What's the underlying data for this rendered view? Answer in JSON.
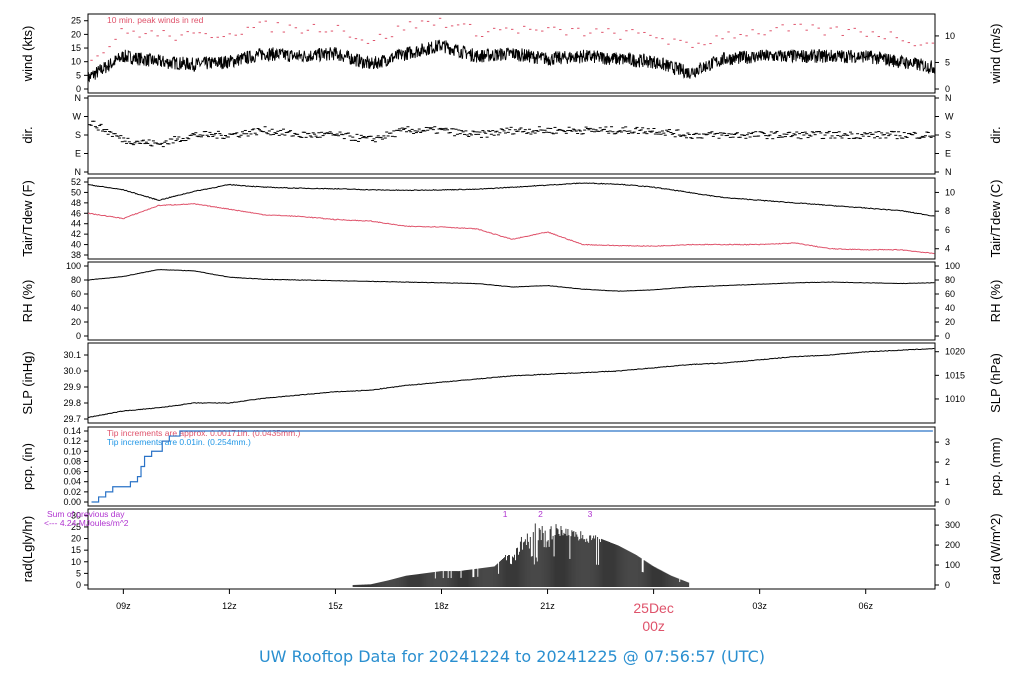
{
  "footer_title": "UW Rooftop Data for 20241224  to  20241225 @ 07:56:57  (UTC)",
  "date_label": {
    "day": "25Dec",
    "hour": "00z",
    "color": "#df536b"
  },
  "x_ticks": [
    "09z",
    "12z",
    "15z",
    "18z",
    "21z",
    "03z",
    "06z"
  ],
  "x_tick_hours": [
    9,
    12,
    15,
    18,
    21,
    27,
    30
  ],
  "x_range_hours": [
    8,
    31.96
  ],
  "panels": [
    {
      "id": "wind",
      "ylabel_left": "wind (kts)",
      "ylabel_right": "wind (m/s)",
      "left_ticks": [
        "0",
        "5",
        "10",
        "15",
        "20",
        "25"
      ],
      "right_ticks": [
        "0",
        "5",
        "10"
      ],
      "annotations": [
        {
          "text": "10 min. peak winds in red",
          "color": "#df536b"
        }
      ]
    },
    {
      "id": "dir",
      "ylabel_left": "dir.",
      "ylabel_right": "dir.",
      "left_ticks": [
        "N",
        "E",
        "S",
        "W",
        "N"
      ],
      "right_ticks": [
        "N",
        "E",
        "S",
        "W",
        "N"
      ],
      "annotations": []
    },
    {
      "id": "temp",
      "ylabel_left": "Tair/Tdew (F)",
      "ylabel_right": "Tair/Tdew (C)",
      "left_ticks": [
        "38",
        "40",
        "42",
        "44",
        "46",
        "48",
        "50",
        "52"
      ],
      "right_ticks": [
        "4",
        "6",
        "8",
        "10"
      ],
      "annotations": []
    },
    {
      "id": "rh",
      "ylabel_left": "RH (%)",
      "ylabel_right": "RH (%)",
      "left_ticks": [
        "0",
        "20",
        "40",
        "60",
        "80",
        "100"
      ],
      "right_ticks": [
        "0",
        "20",
        "40",
        "60",
        "80",
        "100"
      ],
      "annotations": []
    },
    {
      "id": "slp",
      "ylabel_left": "SLP (inHg)",
      "ylabel_right": "SLP (hPa)",
      "left_ticks": [
        "29.7",
        "29.8",
        "29.9",
        "30.0",
        "30.1"
      ],
      "right_ticks": [
        "1010",
        "1015",
        "1020"
      ],
      "annotations": []
    },
    {
      "id": "pcp",
      "ylabel_left": "pcp. (in)",
      "ylabel_right": "pcp. (mm)",
      "left_ticks": [
        "0.00",
        "0.02",
        "0.04",
        "0.06",
        "0.08",
        "0.10",
        "0.12",
        "0.14"
      ],
      "right_ticks": [
        "0",
        "1",
        "2",
        "3"
      ],
      "annotations": [
        {
          "text": "Tip increments are approx. 0.00171in. (0.0435mm.)",
          "color": "#df536b"
        },
        {
          "text": "Tip increments are 0.01in. (0.254mm.)",
          "color": "#2297e6"
        }
      ]
    },
    {
      "id": "rad",
      "ylabel_left": "rad(Lgly/hr)",
      "ylabel_right": "rad (W/m^2)",
      "left_ticks": [
        "0",
        "5",
        "10",
        "15",
        "20",
        "25",
        "30"
      ],
      "right_ticks": [
        "0",
        "100",
        "200",
        "300"
      ],
      "annotations": [
        {
          "text": "Sum of previous day",
          "color": "#b033d0"
        },
        {
          "text": "<--- 4.24 MJoules/m^2",
          "color": "#b033d0"
        }
      ],
      "markers": [
        "1",
        "2",
        "3"
      ]
    }
  ],
  "colors": {
    "line": "#000000",
    "peak": "#df536b",
    "dew": "#df536b",
    "pcp": "#2a73c7",
    "annot_purple": "#b033d0",
    "footer": "#2a8fd0"
  },
  "chart_data": [
    {
      "type": "line",
      "panel": "wind",
      "title": "",
      "ylabel": "wind (kts)",
      "ylim": [
        0,
        26
      ],
      "x_hours": [
        8,
        9,
        10,
        11,
        12,
        13,
        14,
        15,
        16,
        17,
        18,
        19,
        20,
        21,
        22,
        23,
        24,
        25,
        26,
        27,
        28,
        29,
        30,
        31,
        31.9
      ],
      "series": [
        {
          "values": [
            4,
            12,
            10,
            9,
            10,
            13,
            12,
            13,
            9,
            13,
            16,
            12,
            13,
            11,
            12,
            11,
            10,
            6,
            11,
            12,
            12,
            12,
            12,
            10,
            8
          ]
        },
        {
          "name": "10 min. peak winds in red",
          "values": [
            9,
            21,
            20,
            19,
            21,
            23,
            22,
            23,
            17,
            23,
            25,
            21,
            22,
            21,
            21,
            20,
            20,
            15,
            20,
            21,
            22,
            21,
            21,
            19,
            16
          ]
        }
      ]
    },
    {
      "type": "scatter",
      "panel": "dir",
      "title": "",
      "ylabel": "dir.",
      "yticks": [
        "N",
        "E",
        "S",
        "W",
        "N"
      ],
      "x_hours": [
        8,
        9,
        10,
        11,
        12,
        13,
        14,
        15,
        16,
        17,
        18,
        19,
        20,
        21,
        22,
        23,
        24,
        25,
        26,
        27,
        28,
        29,
        30,
        31,
        31.9
      ],
      "series": [
        {
          "values": [
            "WSW",
            "SSE",
            "SE",
            "S",
            "S",
            "SSW",
            "S",
            "S",
            "SSE",
            "SSW",
            "SSW",
            "S",
            "SSW",
            "SSW",
            "SSW",
            "SSW",
            "SSW",
            "S",
            "S",
            "S",
            "S",
            "S",
            "S",
            "S",
            "S"
          ]
        }
      ]
    },
    {
      "type": "line",
      "panel": "temp",
      "title": "",
      "ylabel": "Tair/Tdew (F)",
      "ylim": [
        38,
        52
      ],
      "x_hours": [
        8,
        9,
        10,
        11,
        12,
        13,
        14,
        15,
        16,
        17,
        18,
        19,
        20,
        21,
        22,
        23,
        24,
        25,
        26,
        27,
        28,
        29,
        30,
        31,
        31.9
      ],
      "series": [
        {
          "values": [
            51.5,
            50.5,
            48.5,
            50.2,
            51.5,
            51,
            50.8,
            50.7,
            50.5,
            50.4,
            50.5,
            50.6,
            51,
            51.4,
            51.8,
            51.6,
            51,
            50,
            49,
            48.5,
            48,
            47.5,
            47,
            46.5,
            45.5
          ]
        },
        {
          "values": [
            46,
            45,
            47.5,
            47.8,
            46.8,
            45.7,
            45.4,
            44.8,
            44.5,
            43.5,
            43.4,
            43,
            41,
            42.4,
            40,
            39.8,
            39.7,
            40,
            40,
            40,
            40.3,
            39.2,
            39,
            39,
            38.3
          ]
        }
      ]
    },
    {
      "type": "line",
      "panel": "rh",
      "title": "",
      "ylabel": "RH (%)",
      "ylim": [
        0,
        100
      ],
      "x_hours": [
        8,
        9,
        10,
        11,
        12,
        13,
        14,
        15,
        16,
        17,
        18,
        19,
        20,
        21,
        22,
        23,
        24,
        25,
        26,
        27,
        28,
        29,
        30,
        31,
        31.9
      ],
      "series": [
        {
          "values": [
            80,
            85,
            95,
            93,
            84,
            81,
            80,
            79,
            78,
            77,
            76,
            75,
            70,
            72,
            67,
            64,
            66,
            70,
            72,
            74,
            76,
            77,
            76,
            75,
            76
          ]
        }
      ]
    },
    {
      "type": "line",
      "panel": "slp",
      "title": "",
      "ylabel": "SLP (inHg)",
      "ylim": [
        29.7,
        30.15
      ],
      "x_hours": [
        8,
        9,
        10,
        11,
        12,
        13,
        14,
        15,
        16,
        17,
        18,
        19,
        20,
        21,
        22,
        23,
        24,
        25,
        26,
        27,
        28,
        29,
        30,
        31,
        31.9
      ],
      "series": [
        {
          "values": [
            29.71,
            29.75,
            29.77,
            29.8,
            29.8,
            29.83,
            29.85,
            29.87,
            29.88,
            29.91,
            29.93,
            29.95,
            29.97,
            29.98,
            29.99,
            30.0,
            30.02,
            30.04,
            30.05,
            30.07,
            30.09,
            30.1,
            30.12,
            30.13,
            30.14
          ]
        }
      ]
    },
    {
      "type": "line",
      "panel": "pcp",
      "title": "",
      "ylabel": "pcp. (in)",
      "ylim": [
        0,
        0.14
      ],
      "x_hours": [
        8.1,
        8.3,
        8.5,
        8.7,
        9.0,
        9.2,
        9.4,
        9.5,
        9.6,
        9.8,
        10.0,
        10.1,
        10.3,
        10.6,
        31.9
      ],
      "series": [
        {
          "values": [
            0,
            0.01,
            0.02,
            0.03,
            0.03,
            0.04,
            0.05,
            0.07,
            0.09,
            0.1,
            0.1,
            0.12,
            0.13,
            0.14,
            0.14
          ]
        }
      ]
    },
    {
      "type": "area",
      "panel": "rad",
      "title": "",
      "ylabel": "rad(Lgly/hr)",
      "ylim": [
        0,
        31
      ],
      "x_hours": [
        15.5,
        16,
        16.5,
        17,
        17.5,
        18,
        18.5,
        19,
        19.5,
        20,
        20.5,
        21,
        21.5,
        22,
        22.5,
        23,
        23.5,
        24,
        24.5,
        25
      ],
      "series": [
        {
          "values": [
            0,
            0.3,
            2,
            4,
            5,
            6,
            6,
            7,
            8,
            15,
            25,
            26,
            24,
            22,
            20,
            17,
            13,
            8,
            4,
            1
          ]
        }
      ]
    }
  ]
}
